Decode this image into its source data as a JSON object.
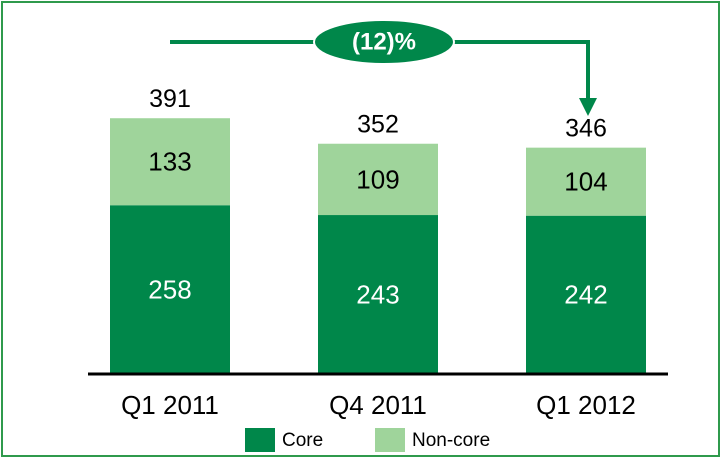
{
  "chart_data": {
    "type": "stacked_bar",
    "categories": [
      "Q1 2011",
      "Q4 2011",
      "Q1 2012"
    ],
    "series": [
      {
        "name": "Core",
        "color": "#00874a",
        "values": [
          258,
          243,
          242
        ]
      },
      {
        "name": "Non-core",
        "color": "#9fd49b",
        "values": [
          133,
          109,
          104
        ]
      }
    ],
    "totals": [
      391,
      352,
      346
    ],
    "ylim": [
      0,
      480
    ],
    "annotation": "(12)%",
    "legend": "bottom"
  }
}
